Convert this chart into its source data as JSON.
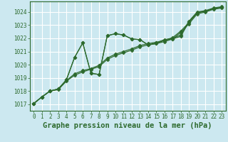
{
  "title": "Graphe pression niveau de la mer (hPa)",
  "background_color": "#cce8f0",
  "grid_color": "#ffffff",
  "line_color": "#2d6a2d",
  "xlim": [
    -0.5,
    23.5
  ],
  "ylim": [
    1016.5,
    1024.8
  ],
  "xticks": [
    0,
    1,
    2,
    3,
    4,
    5,
    6,
    7,
    8,
    9,
    10,
    11,
    12,
    13,
    14,
    15,
    16,
    17,
    18,
    19,
    20,
    21,
    22,
    23
  ],
  "yticks": [
    1017,
    1018,
    1019,
    1020,
    1021,
    1022,
    1023,
    1024
  ],
  "series": [
    [
      1017.05,
      1017.55,
      1018.0,
      1018.1,
      1018.75,
      1019.2,
      1019.45,
      1019.65,
      1019.85,
      1020.4,
      1020.7,
      1020.9,
      1021.1,
      1021.35,
      1021.5,
      1021.6,
      1021.75,
      1021.95,
      1022.45,
      1023.1,
      1023.85,
      1024.0,
      1024.2,
      1024.3
    ],
    [
      1017.05,
      1017.55,
      1018.0,
      1018.15,
      1018.8,
      1019.3,
      1019.55,
      1019.7,
      1019.95,
      1020.5,
      1020.8,
      1021.0,
      1021.2,
      1021.45,
      1021.6,
      1021.7,
      1021.85,
      1022.05,
      1022.55,
      1023.2,
      1023.95,
      1024.05,
      1024.25,
      1024.35
    ],
    [
      1017.05,
      1017.55,
      1018.0,
      1018.15,
      1018.85,
      1020.55,
      1021.65,
      1019.35,
      1019.25,
      1022.2,
      1022.35,
      1022.25,
      1021.95,
      1021.9,
      1021.5,
      1021.6,
      1021.85,
      1021.95,
      1022.15,
      1023.25,
      1023.95,
      1024.05,
      1024.25,
      1024.35
    ],
    [
      1017.05,
      1017.55,
      1018.0,
      1018.15,
      1018.85,
      1020.55,
      1021.65,
      1019.35,
      1019.25,
      1022.2,
      1022.35,
      1022.25,
      1021.95,
      1021.9,
      1021.5,
      1021.65,
      1021.9,
      1022.0,
      1022.25,
      1023.3,
      1024.0,
      1024.1,
      1024.3,
      1024.4
    ]
  ],
  "marker": "D",
  "markersize": 2.5,
  "linewidth": 0.9,
  "title_fontsize": 7.5,
  "tick_fontsize": 5.5
}
